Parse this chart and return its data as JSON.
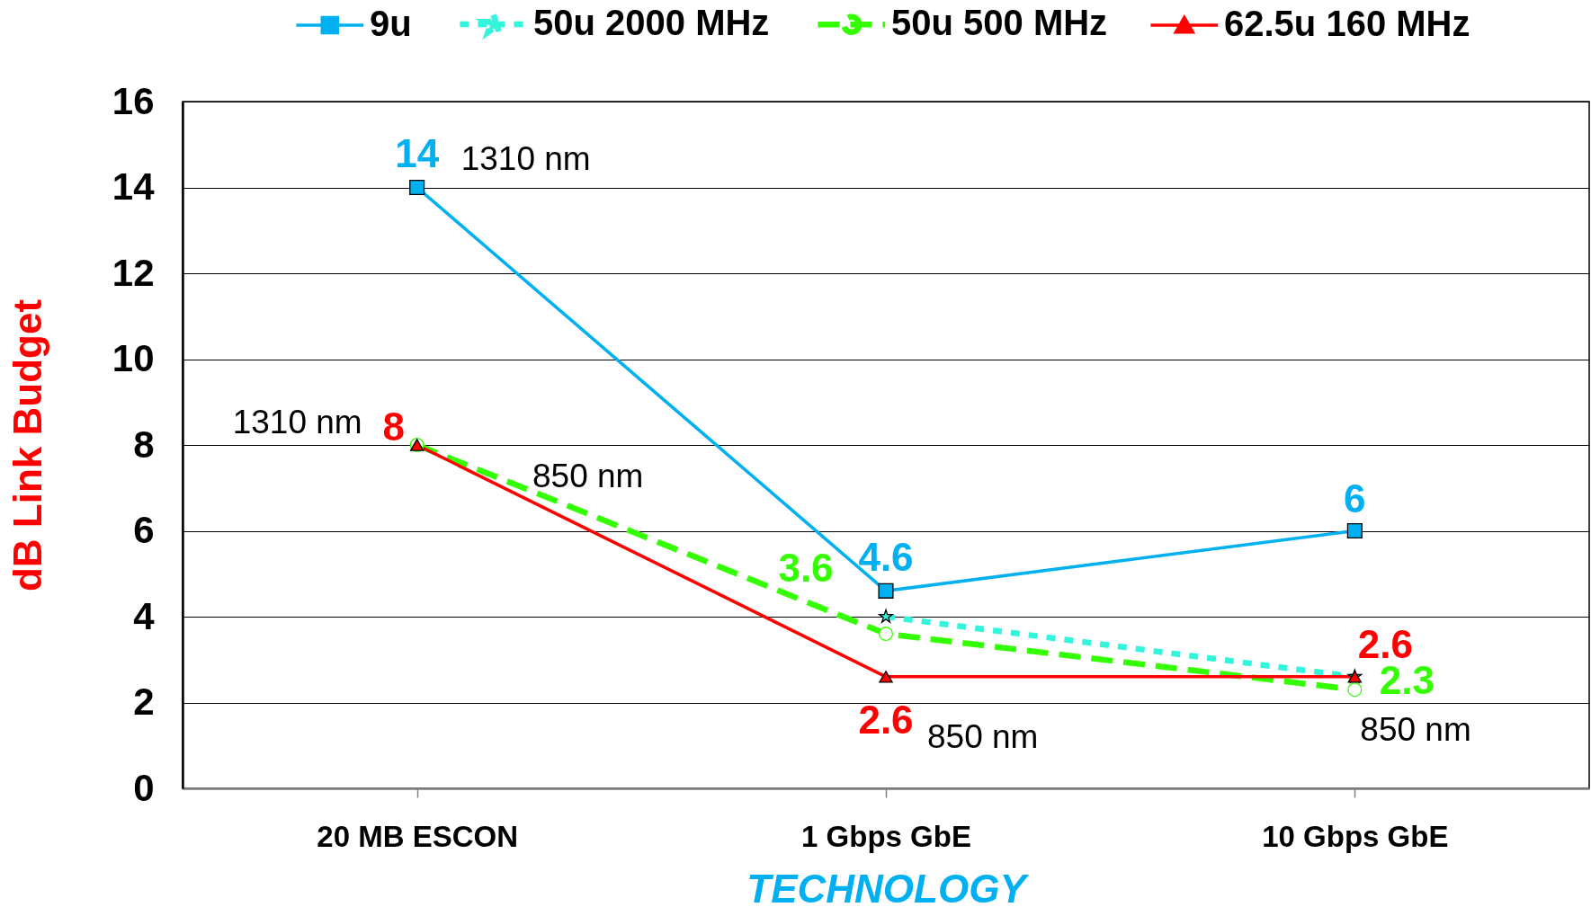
{
  "chart_data": {
    "type": "line",
    "xlabel": "TECHNOLOGY",
    "ylabel": "dB Link Budget",
    "categories": [
      "20 MB ESCON",
      "1 Gbps GbE",
      "10 Gbps GbE"
    ],
    "series": [
      {
        "name": "9u",
        "color": "#00b0f0",
        "marker": "square",
        "line_style": "solid",
        "values": [
          14,
          4.6,
          6
        ],
        "value_labels": [
          "14",
          "4.6",
          "6"
        ]
      },
      {
        "name": "50u 2000 MHz",
        "color": "#33f5dc",
        "marker": "star",
        "line_style": "dotted",
        "values": [
          null,
          4,
          2.6
        ]
      },
      {
        "name": "50u 500 MHz",
        "color": "#33ff00",
        "marker": "circle",
        "line_style": "dashed",
        "values": [
          8,
          3.6,
          2.3
        ],
        "value_labels": [
          null,
          "3.6",
          "2.3"
        ]
      },
      {
        "name": "62.5u 160 MHz",
        "color": "#ff0000",
        "marker": "triangle",
        "line_style": "solid",
        "values": [
          8,
          2.6,
          2.6
        ],
        "value_labels": [
          "8",
          "2.6",
          "2.6"
        ]
      }
    ],
    "ylim": [
      0,
      16
    ],
    "yticks": [
      0,
      2,
      4,
      6,
      8,
      10,
      12,
      14,
      16
    ],
    "grid": "y",
    "legend": "top",
    "annotations": [
      {
        "text": "1310 nm",
        "x": "20 MB ESCON",
        "y": 14
      },
      {
        "text": "1310 nm",
        "x": "20 MB ESCON",
        "y": 8
      },
      "850 nm",
      {
        "text": "850 nm",
        "x": "1 Gbps GbE",
        "y": 2.6
      },
      {
        "text": "850 nm",
        "x": "10 Gbps GbE",
        "y": 2.3
      }
    ]
  }
}
